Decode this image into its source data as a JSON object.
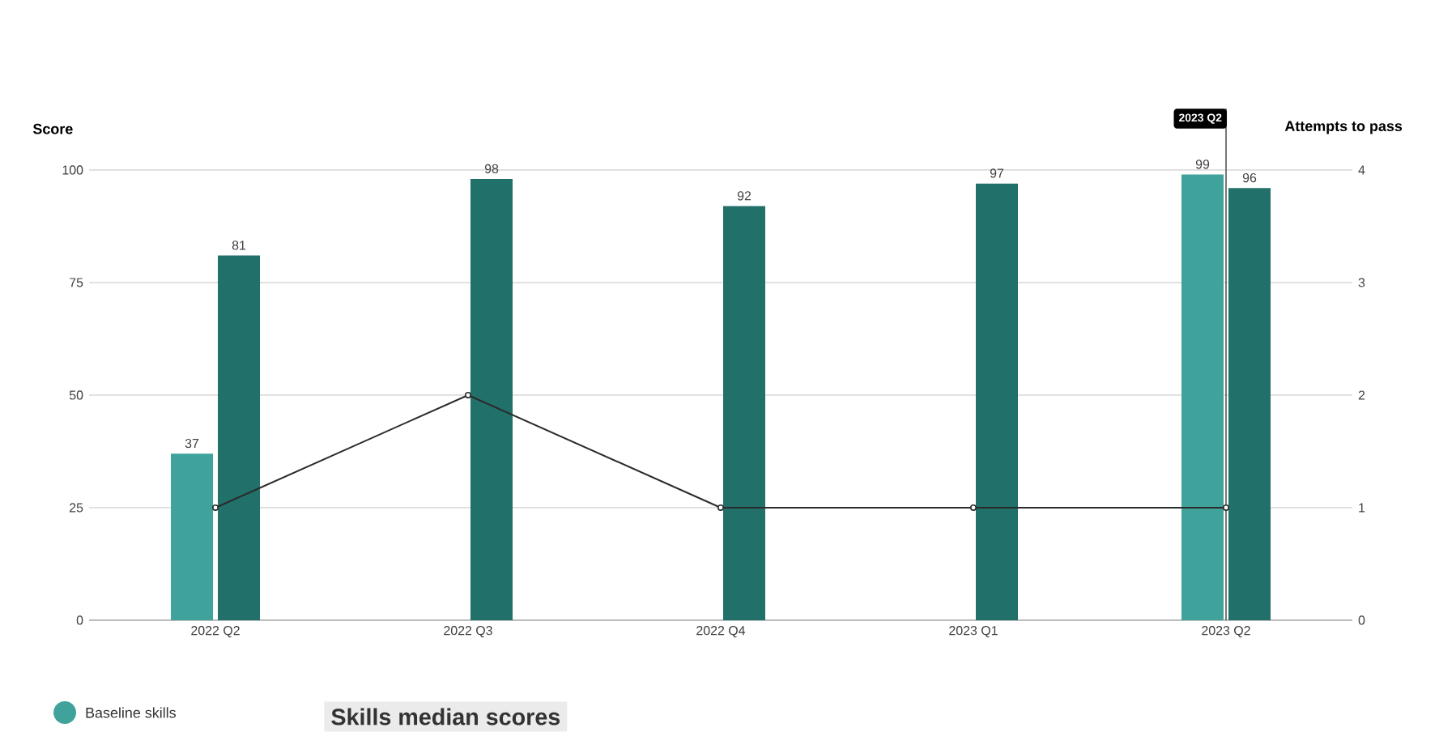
{
  "chart_data": {
    "type": "bar",
    "title": "Skills median scores",
    "categories": [
      "2022 Q2",
      "2022 Q3",
      "2022 Q4",
      "2023 Q1",
      "2023 Q2"
    ],
    "series": [
      {
        "name": "Baseline skills",
        "color": "#3fa39c",
        "values": [
          37,
          null,
          null,
          null,
          99
        ],
        "value_labels": [
          "37",
          null,
          null,
          null,
          "99"
        ]
      },
      {
        "color": "#21706a",
        "values": [
          81,
          98,
          92,
          97,
          96
        ],
        "value_labels": [
          "81",
          "98",
          "92",
          "97",
          "96"
        ]
      },
      {
        "type": "line",
        "axis": "y2",
        "color": "#2b2b2b",
        "marker": "circle",
        "values": [
          1,
          2,
          1,
          1,
          1
        ]
      }
    ],
    "ylabel": "Score",
    "y2label": "Attempts to pass",
    "ylim": [
      0,
      100
    ],
    "yticks": [
      0,
      25,
      50,
      75,
      100
    ],
    "y2lim": [
      0,
      4
    ],
    "y2ticks": [
      0,
      1,
      2,
      3,
      4
    ],
    "ref_lines": [
      {
        "axis": "x",
        "value": "2023 Q2",
        "label": "2023 Q2",
        "color": "#555555"
      }
    ],
    "grid": "y",
    "legend": "bottom left"
  }
}
